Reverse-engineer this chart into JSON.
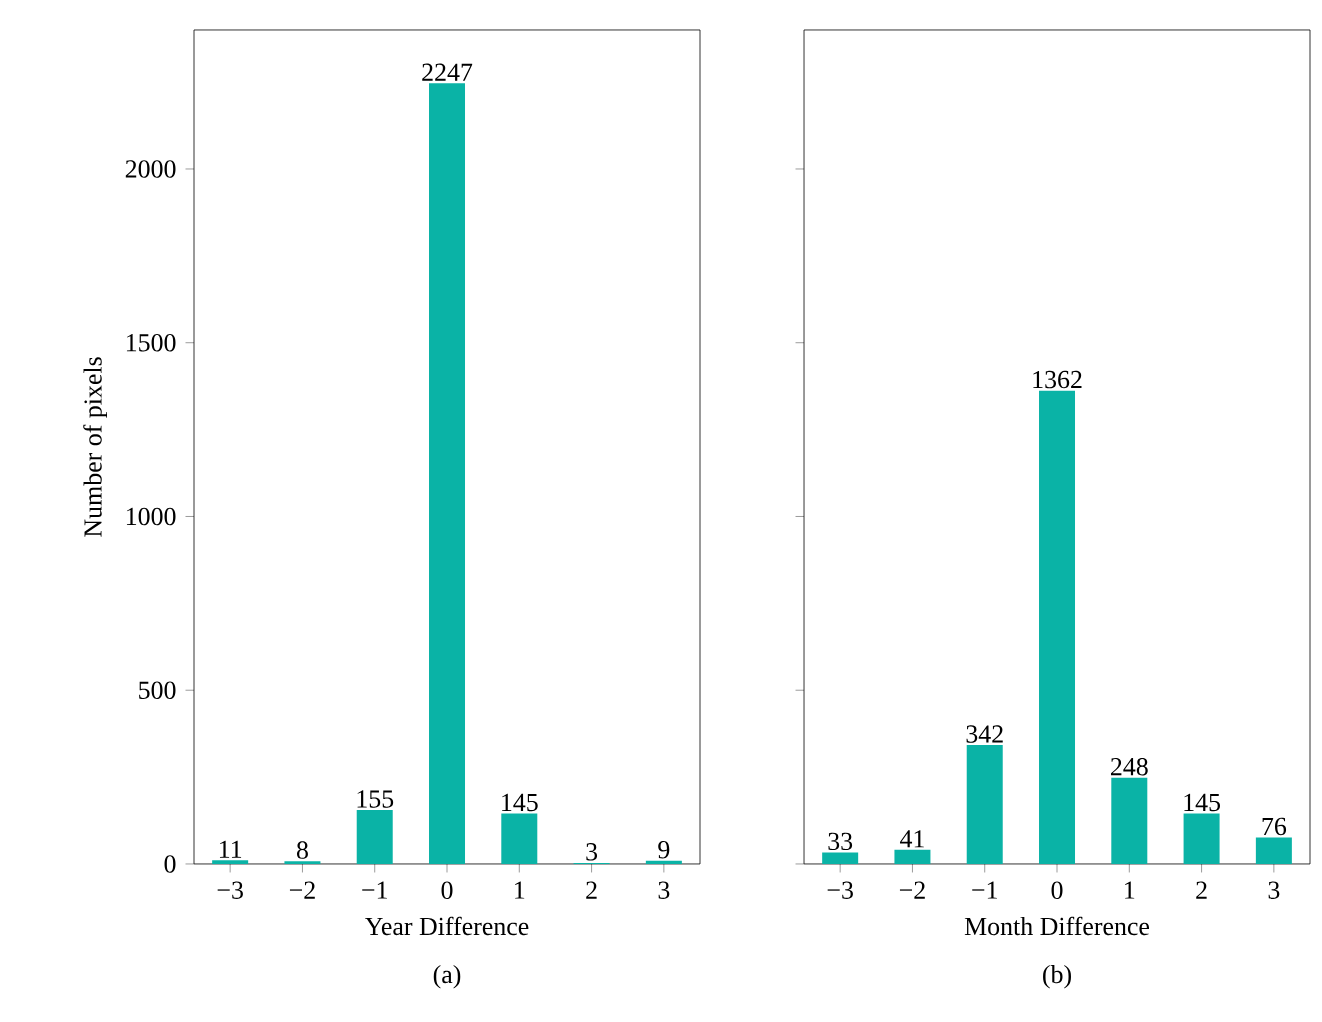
{
  "chart_data": [
    {
      "type": "bar",
      "x": [
        -3,
        -2,
        -1,
        0,
        1,
        2,
        3
      ],
      "values": [
        11,
        8,
        155,
        2247,
        145,
        3,
        9
      ],
      "color": "#0ab3a6",
      "data_labels": true,
      "xlabel": "Year Difference",
      "ylabel": "Number of pixels",
      "annotations": [
        "(a)"
      ],
      "xlim": [
        -3.5,
        3.5
      ],
      "ylim": [
        0,
        2400
      ],
      "xticks": [
        {
          "value": -3,
          "label": "−3"
        },
        {
          "value": -2,
          "label": "−2"
        },
        {
          "value": -1,
          "label": "−1"
        },
        0,
        1,
        2,
        3
      ],
      "yticks": [
        0,
        500,
        1000,
        1500,
        2000
      ]
    },
    {
      "type": "bar",
      "x": [
        -3,
        -2,
        -1,
        0,
        1,
        2,
        3
      ],
      "values": [
        33,
        41,
        342,
        1362,
        248,
        145,
        76
      ],
      "color": "#0ab3a6",
      "data_labels": true,
      "xlabel": "Month Difference",
      "annotations": [
        "(b)"
      ],
      "xlim": [
        -3.5,
        3.5
      ],
      "ylim": [
        0,
        2400
      ],
      "tick_labels": "x",
      "xticks": [
        {
          "value": -3,
          "label": "−3"
        },
        {
          "value": -2,
          "label": "−2"
        },
        {
          "value": -1,
          "label": "−1"
        },
        0,
        1,
        2,
        3
      ],
      "yticks": [
        0,
        500,
        1000,
        1500,
        2000
      ]
    }
  ]
}
